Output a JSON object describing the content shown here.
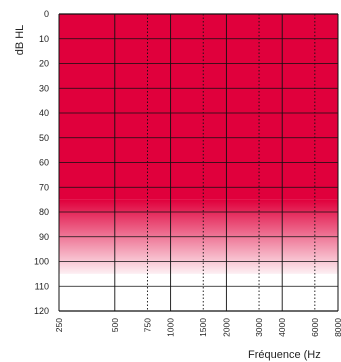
{
  "chart_data": {
    "type": "area",
    "title": "",
    "ylabel": "dB HL",
    "xlabel": "Fréquence (Hz",
    "y_axis": {
      "min": 0,
      "max": 120,
      "reversed": true,
      "ticks": [
        0,
        10,
        20,
        30,
        40,
        50,
        60,
        70,
        80,
        90,
        100,
        110,
        120
      ]
    },
    "x_axis": {
      "scale": "log",
      "ticks": [
        {
          "value": 250,
          "label": "250",
          "style": "none"
        },
        {
          "value": 500,
          "label": "500",
          "style": "solid"
        },
        {
          "value": 750,
          "label": "750",
          "style": "dotted"
        },
        {
          "value": 1000,
          "label": "1000",
          "style": "solid"
        },
        {
          "value": 1500,
          "label": "1500",
          "style": "dotted"
        },
        {
          "value": 2000,
          "label": "2000",
          "style": "solid"
        },
        {
          "value": 3000,
          "label": "3000",
          "style": "dotted"
        },
        {
          "value": 4000,
          "label": "4000",
          "style": "solid"
        },
        {
          "value": 6000,
          "label": "6000",
          "style": "dotted"
        },
        {
          "value": 8000,
          "label": "8000",
          "style": "none"
        }
      ]
    },
    "grid": true,
    "shaded_region": {
      "solid_from": 0,
      "solid_to": 75,
      "fade_to": 105,
      "color": "#e0003c"
    },
    "colors": {
      "grid": "#111111",
      "fill": "#e0003c"
    }
  }
}
